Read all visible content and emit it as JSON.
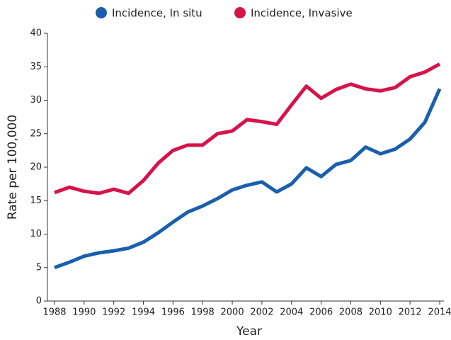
{
  "chart_data": {
    "type": "line",
    "x": [
      1988,
      1989,
      1990,
      1991,
      1992,
      1993,
      1994,
      1995,
      1996,
      1997,
      1998,
      1999,
      2000,
      2001,
      2002,
      2003,
      2004,
      2005,
      2006,
      2007,
      2008,
      2009,
      2010,
      2011,
      2012,
      2013,
      2014
    ],
    "series": [
      {
        "name": "Incidence, In situ",
        "color": "#1a5fad",
        "values": [
          5.0,
          5.8,
          6.7,
          7.2,
          7.5,
          7.9,
          8.8,
          10.2,
          11.8,
          13.3,
          14.2,
          15.3,
          16.6,
          17.3,
          17.8,
          16.3,
          17.5,
          19.9,
          18.6,
          20.4,
          21.0,
          23.0,
          22.0,
          22.7,
          24.2,
          26.7,
          31.7
        ]
      },
      {
        "name": "Incidence, Invasive",
        "color": "#d6134a",
        "values": [
          16.2,
          17.0,
          16.4,
          16.1,
          16.7,
          16.1,
          18.0,
          20.6,
          22.5,
          23.3,
          23.3,
          25.0,
          25.4,
          27.1,
          26.8,
          26.4,
          29.3,
          32.1,
          30.3,
          31.6,
          32.4,
          31.7,
          31.4,
          31.9,
          33.5,
          34.2,
          35.4
        ]
      }
    ],
    "xlabel": "Year",
    "ylabel": "Rate per 100,000",
    "xlim": [
      1988,
      2014
    ],
    "xticks": [
      1988,
      1990,
      1992,
      1994,
      1996,
      1998,
      2000,
      2002,
      2004,
      2006,
      2008,
      2010,
      2012,
      2014
    ],
    "ylim": [
      0,
      40
    ],
    "yticks": [
      0,
      5,
      10,
      15,
      20,
      25,
      30,
      35,
      40
    ],
    "grid": false,
    "legend": "top"
  }
}
